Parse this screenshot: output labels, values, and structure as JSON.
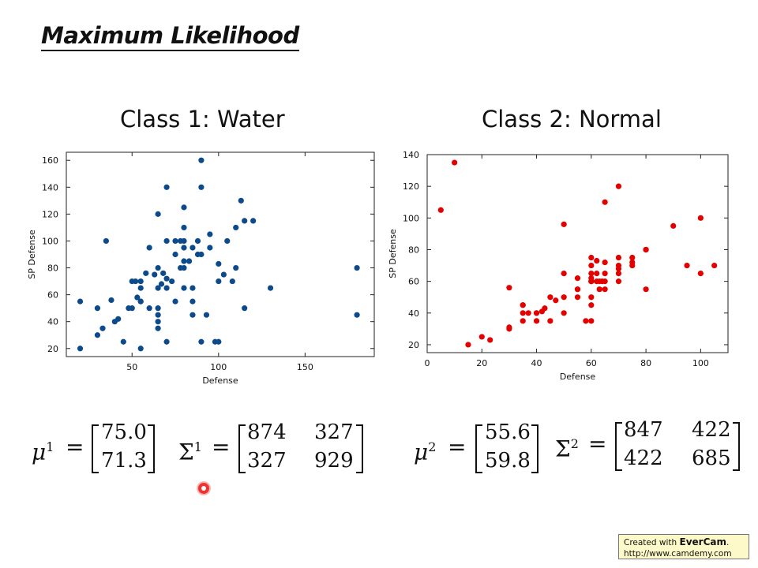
{
  "slide_title": "Maximum Likelihood",
  "chart_data": [
    {
      "type": "scatter",
      "title": "Class 1: Water",
      "xlabel": "Defense",
      "ylabel": "SP Defense",
      "xlim": [
        12,
        190
      ],
      "ylim": [
        14,
        166
      ],
      "xticks": [
        50,
        100,
        150
      ],
      "yticks": [
        20,
        40,
        60,
        80,
        100,
        120,
        140,
        160
      ],
      "color": "#0d4a8c",
      "series": [
        {
          "x": [
            20,
            20,
            30,
            30,
            33,
            35,
            38,
            40,
            42,
            45,
            48,
            50,
            50,
            52,
            53,
            55,
            55,
            55,
            55,
            55,
            58,
            60,
            60,
            63,
            65,
            65,
            65,
            65,
            65,
            65,
            65,
            67,
            68,
            70,
            70,
            70,
            70,
            70,
            73,
            75,
            75,
            75,
            78,
            78,
            80,
            80,
            80,
            80,
            80,
            80,
            80,
            83,
            85,
            85,
            85,
            85,
            88,
            88,
            90,
            90,
            90,
            90,
            93,
            95,
            95,
            98,
            100,
            100,
            100,
            103,
            105,
            108,
            110,
            110,
            113,
            115,
            115,
            120,
            130,
            180,
            180
          ],
          "y": [
            20,
            55,
            30,
            50,
            35,
            100,
            56,
            40,
            42,
            25,
            50,
            50,
            70,
            70,
            58,
            20,
            55,
            65,
            70,
            55,
            76,
            95,
            50,
            75,
            120,
            80,
            65,
            45,
            40,
            35,
            50,
            68,
            76,
            140,
            100,
            72,
            25,
            65,
            70,
            100,
            55,
            90,
            80,
            100,
            65,
            80,
            85,
            125,
            110,
            100,
            95,
            85,
            65,
            55,
            45,
            95,
            100,
            90,
            25,
            160,
            140,
            90,
            45,
            95,
            105,
            25,
            83,
            25,
            70,
            75,
            100,
            70,
            110,
            80,
            130,
            115,
            50,
            115,
            65,
            80,
            45
          ]
        }
      ]
    },
    {
      "type": "scatter",
      "title": "Class 2: Normal",
      "xlabel": "Defense",
      "ylabel": "SP Defense",
      "xlim": [
        0,
        110
      ],
      "ylim": [
        15,
        140
      ],
      "xticks": [
        0,
        20,
        40,
        60,
        80,
        100
      ],
      "yticks": [
        20,
        40,
        60,
        80,
        100,
        120,
        140
      ],
      "color": "#e50000",
      "series": [
        {
          "x": [
            5,
            10,
            15,
            20,
            23,
            30,
            30,
            30,
            35,
            35,
            35,
            35,
            37,
            40,
            40,
            40,
            42,
            43,
            45,
            45,
            47,
            50,
            50,
            50,
            50,
            55,
            55,
            55,
            55,
            58,
            60,
            60,
            60,
            60,
            60,
            60,
            60,
            60,
            60,
            60,
            62,
            62,
            62,
            63,
            63,
            64,
            65,
            65,
            65,
            65,
            65,
            70,
            70,
            70,
            70,
            70,
            70,
            75,
            75,
            75,
            80,
            80,
            80,
            90,
            95,
            100,
            100,
            105
          ],
          "y": [
            105,
            135,
            20,
            25,
            23,
            30,
            31,
            56,
            35,
            40,
            45,
            45,
            40,
            35,
            40,
            40,
            41,
            43,
            35,
            50,
            48,
            96,
            65,
            50,
            40,
            55,
            50,
            55,
            62,
            35,
            35,
            70,
            75,
            60,
            60,
            65,
            60,
            62,
            45,
            50,
            65,
            60,
            73,
            55,
            60,
            60,
            110,
            55,
            65,
            72,
            60,
            120,
            75,
            65,
            70,
            68,
            60,
            75,
            70,
            72,
            80,
            55,
            80,
            95,
            70,
            100,
            65,
            70
          ]
        }
      ]
    }
  ],
  "formulas": {
    "class1": {
      "mu_symbol": "μ",
      "mu_sup": "1",
      "mu_values": [
        "75.0",
        "71.3"
      ],
      "sigma_symbol": "Σ",
      "sigma_sup": "1",
      "sigma_values": [
        [
          "874",
          "327"
        ],
        [
          "327",
          "929"
        ]
      ]
    },
    "class2": {
      "mu_symbol": "μ",
      "mu_sup": "2",
      "mu_values": [
        "55.6",
        "59.8"
      ],
      "sigma_symbol": "Σ",
      "sigma_sup": "2",
      "sigma_values": [
        [
          "847",
          "422"
        ],
        [
          "422",
          "685"
        ]
      ]
    },
    "equals": "="
  },
  "watermark": {
    "line1_prefix": "Created with ",
    "line1_brand": "EverCam",
    "line1_suffix": ".",
    "line2": "http://www.camdemy.com"
  }
}
